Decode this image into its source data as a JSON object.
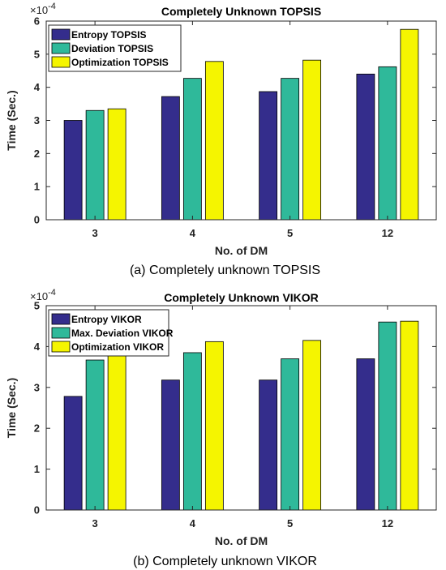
{
  "colors": [
    "#342d8c",
    "#2fb99a",
    "#f5f500"
  ],
  "chart_data": [
    {
      "type": "bar",
      "title": "Completely Unknown TOPSIS",
      "xlabel": "No. of DM",
      "ylabel": "Time (Sec.)",
      "y_exponent_base": "×10",
      "y_exponent_power": "-4",
      "categories": [
        "3",
        "4",
        "5",
        "12"
      ],
      "ylim": [
        0,
        6
      ],
      "yticks": [
        0,
        1,
        2,
        3,
        4,
        5,
        6
      ],
      "legend_position": "top-left",
      "series": [
        {
          "name": "Entropy TOPSIS",
          "values": [
            3.0,
            3.72,
            3.87,
            4.4
          ]
        },
        {
          "name": "Deviation TOPSIS",
          "values": [
            3.3,
            4.27,
            4.27,
            4.62
          ]
        },
        {
          "name": "Optimization TOPSIS",
          "values": [
            3.35,
            4.78,
            4.82,
            5.75
          ]
        }
      ],
      "caption": "(a) Completely unknown TOPSIS"
    },
    {
      "type": "bar",
      "title": "Completely Unknown VIKOR",
      "xlabel": "No. of DM",
      "ylabel": "Time (Sec.)",
      "y_exponent_base": "×10",
      "y_exponent_power": "-4",
      "categories": [
        "3",
        "4",
        "5",
        "12"
      ],
      "ylim": [
        0,
        5
      ],
      "yticks": [
        0,
        1,
        2,
        3,
        4,
        5
      ],
      "legend_position": "top-left",
      "series": [
        {
          "name": "Entropy VIKOR",
          "values": [
            2.78,
            3.18,
            3.18,
            3.7
          ]
        },
        {
          "name": "Max. Deviation VIKOR",
          "values": [
            3.67,
            3.85,
            3.7,
            4.6
          ]
        },
        {
          "name": "Optimization VIKOR",
          "values": [
            3.9,
            4.12,
            4.15,
            4.62
          ]
        }
      ],
      "caption": "(b) Completely unknown VIKOR"
    }
  ]
}
